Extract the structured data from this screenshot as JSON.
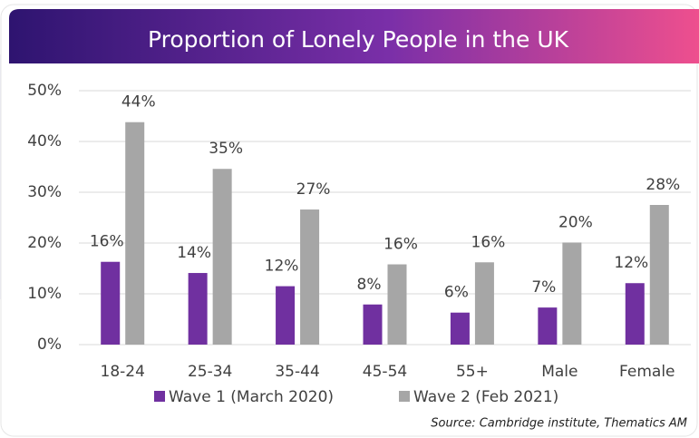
{
  "chart_data": {
    "type": "bar",
    "title": "Proportion of Lonely People in the UK",
    "source": "Source: Cambridge institute, Thematics AM",
    "categories": [
      "18-24",
      "25-34",
      "35-44",
      "45-54",
      "55+",
      "Male",
      "Female"
    ],
    "series": [
      {
        "name": "Wave 1 (March 2020)",
        "color": "#7030a0",
        "values": [
          16.3,
          14.1,
          11.5,
          7.9,
          6.3,
          7.3,
          12.1
        ],
        "value_labels": [
          "16%",
          "14%",
          "12%",
          "8%",
          "6%",
          "7%",
          "12%"
        ]
      },
      {
        "name": "Wave 2 (Feb 2021)",
        "color": "#a6a6a6",
        "values": [
          43.8,
          34.6,
          26.6,
          15.8,
          16.2,
          20.1,
          27.5
        ],
        "value_labels": [
          "44%",
          "35%",
          "27%",
          "16%",
          "16%",
          "20%",
          "28%"
        ]
      }
    ],
    "ylim": [
      0,
      50
    ],
    "yticks": [
      {
        "value": 0,
        "label": "0%"
      },
      {
        "value": 10,
        "label": "10%"
      },
      {
        "value": 20,
        "label": "20%"
      },
      {
        "value": 30,
        "label": "30%"
      },
      {
        "value": 40,
        "label": "40%"
      },
      {
        "value": 50,
        "label": "50%"
      }
    ],
    "grid": true,
    "legend": "bottom"
  }
}
